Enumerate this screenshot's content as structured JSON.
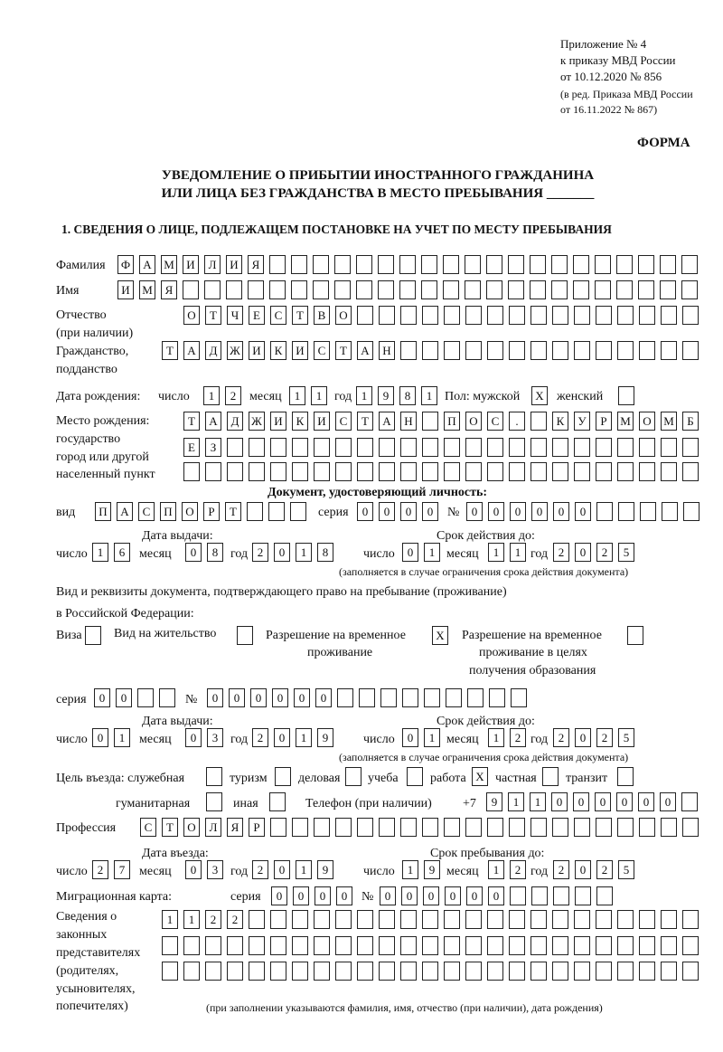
{
  "header": {
    "appendix": "Приложение № 4",
    "order": "к приказу МВД России",
    "order_date": "от 10.12.2020 № 856",
    "edition": "(в ред. Приказа МВД России",
    "edition_date": "от 16.11.2022 № 867)",
    "form_label": "ФОРМА"
  },
  "title": {
    "line1": "УВЕДОМЛЕНИЕ О ПРИБЫТИИ ИНОСТРАННОГО ГРАЖДАНИНА",
    "line2": "ИЛИ ЛИЦА БЕЗ ГРАЖДАНСТВА В МЕСТО ПРЕБЫВАНИЯ _______"
  },
  "section1": {
    "heading": "1. СВЕДЕНИЯ О ЛИЦЕ, ПОДЛЕЖАЩЕМ ПОСТАНОВКЕ НА УЧЕТ ПО МЕСТУ ПРЕБЫВАНИЯ",
    "labels": {
      "surname": "Фамилия",
      "name": "Имя",
      "patronymic": "Отчество",
      "patronymic_note": "(при наличии)",
      "citizenship": "Гражданство,",
      "citizenship2": "подданство",
      "birth_date": "Дата рождения:",
      "day": "число",
      "month": "месяц",
      "year": "год",
      "sex": "Пол: мужской",
      "female": "женский",
      "birthplace": "Место рождения:",
      "birthplace2": "государство",
      "birthplace3": "город или другой",
      "birthplace4": "населенный пункт",
      "id_doc": "Документ, удостоверяющий личность:",
      "kind": "вид",
      "series": "серия",
      "number": "№",
      "issue_date": "Дата выдачи:",
      "valid_until": "Срок действия до:",
      "validity_note": "(заполняется в случае ограничения срока действия документа)",
      "right_doc": "Вид и реквизиты документа, подтверждающего право на пребывание (проживание)",
      "right_doc2": "в Российской Федерации:",
      "visa": "Виза",
      "residence": "Вид на жительство",
      "temp_permit": "Разрешение на временное",
      "temp_permit2": "проживание",
      "edu_permit": "Разрешение на временное",
      "edu_permit2": "проживание в целях",
      "edu_permit3": "получения образования",
      "purpose": "Цель въезда: служебная",
      "tourism": "туризм",
      "business": "деловая",
      "study": "учеба",
      "work": "работа",
      "private": "частная",
      "transit": "транзит",
      "humanitarian": "гуманитарная",
      "other": "иная",
      "phone": "Телефон (при наличии)",
      "phone_prefix": "+7",
      "profession": "Профессия",
      "entry_date": "Дата въезда:",
      "stay_until": "Срок пребывания до:",
      "migration_card": "Миграционная карта:",
      "reps1": "Сведения о",
      "reps2": "законных",
      "reps3": "представителях",
      "reps4": "(родителях,",
      "reps5": "усыновителях,",
      "reps6": "попечителях)",
      "reps_note": "(при заполнении указываются фамилия, имя, отчество (при наличии), дата рождения)"
    },
    "values": {
      "surname": "ФАМИЛИЯ",
      "name": "ИМЯ",
      "patronymic": "ОТЧЕСТВО",
      "citizenship": "ТАДЖИКИСТАН",
      "birth_day": "12",
      "birth_month": "11",
      "birth_year": "1981",
      "sex_male": "X",
      "sex_female": "",
      "birthplace1": "ТАДЖИКИСТАН ПОС. КУРМОМБ",
      "birthplace2": "ЕЗ",
      "birthplace3": "",
      "id_kind": "ПАСПОРТ",
      "id_series": "0000",
      "id_number": "000000",
      "id_issue_day": "16",
      "id_issue_month": "08",
      "id_issue_year": "2018",
      "id_valid_day": "01",
      "id_valid_month": "11",
      "id_valid_year": "2025",
      "visa": "",
      "residence": "",
      "temp_permit": "X",
      "edu_permit": "",
      "right_series": "00",
      "right_number": "000000",
      "right_issue_day": "01",
      "right_issue_month": "03",
      "right_issue_year": "2019",
      "right_valid_day": "01",
      "right_valid_month": "12",
      "right_valid_year": "2025",
      "purpose_official": "",
      "purpose_tourism": "",
      "purpose_business": "",
      "purpose_study": "",
      "purpose_work": "X",
      "purpose_private": "",
      "purpose_transit": "",
      "purpose_humanitarian": "",
      "purpose_other": "",
      "phone": "911000000",
      "profession": "СТОЛЯР",
      "entry_day": "27",
      "entry_month": "03",
      "entry_year": "2019",
      "stay_day": "19",
      "stay_month": "12",
      "stay_year": "2025",
      "mc_series": "0000",
      "mc_number": "000000",
      "reps1": "1122",
      "reps2": "",
      "reps3": ""
    }
  }
}
